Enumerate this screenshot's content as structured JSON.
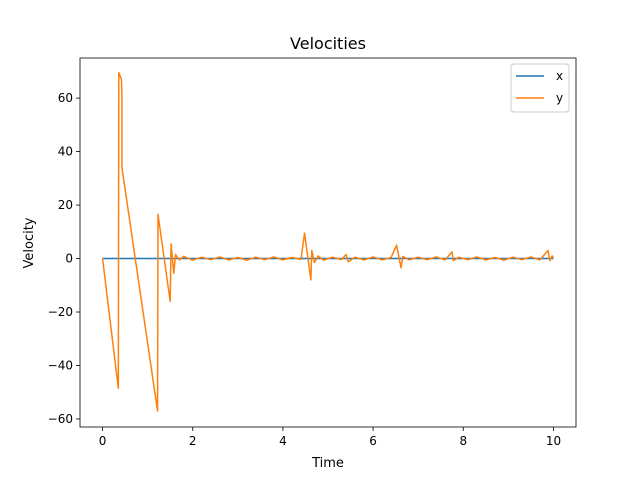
{
  "chart_data": {
    "type": "line",
    "title": "Velocities",
    "xlabel": "Time",
    "ylabel": "Velocity",
    "xlim": [
      -0.5,
      10.5
    ],
    "ylim": [
      -63,
      75
    ],
    "x_ticks": [
      0,
      2,
      4,
      6,
      8,
      10
    ],
    "x_tick_labels": [
      "0",
      "2",
      "4",
      "6",
      "8",
      "10"
    ],
    "y_ticks": [
      -60,
      -40,
      -20,
      0,
      20,
      40,
      60
    ],
    "y_tick_labels": [
      "−60",
      "−40",
      "−20",
      "0",
      "20",
      "40",
      "60"
    ],
    "grid": false,
    "legend_position": "top-right",
    "series": [
      {
        "name": "x",
        "color": "#1f77b4",
        "points": [
          [
            0,
            0
          ],
          [
            10,
            0
          ]
        ]
      },
      {
        "name": "y",
        "color": "#ff7f0e",
        "points": [
          [
            0,
            0
          ],
          [
            0.35,
            -48.5
          ],
          [
            0.36,
            69.5
          ],
          [
            0.42,
            67
          ],
          [
            0.43,
            60
          ],
          [
            0.43,
            34
          ],
          [
            1.22,
            -57
          ],
          [
            1.23,
            16.5
          ],
          [
            1.5,
            -16
          ],
          [
            1.52,
            5.5
          ],
          [
            1.58,
            -5.5
          ],
          [
            1.62,
            1.5
          ],
          [
            1.7,
            -0.5
          ],
          [
            1.8,
            0.8
          ],
          [
            2.0,
            -0.6
          ],
          [
            2.2,
            0.5
          ],
          [
            2.4,
            -0.4
          ],
          [
            2.6,
            0.6
          ],
          [
            2.8,
            -0.5
          ],
          [
            3.0,
            0.4
          ],
          [
            3.2,
            -0.6
          ],
          [
            3.4,
            0.5
          ],
          [
            3.6,
            -0.4
          ],
          [
            3.8,
            0.6
          ],
          [
            4.0,
            -0.5
          ],
          [
            4.2,
            0.4
          ],
          [
            4.4,
            -0.3
          ],
          [
            4.48,
            9.5
          ],
          [
            4.62,
            -8
          ],
          [
            4.64,
            3
          ],
          [
            4.7,
            -1.5
          ],
          [
            4.78,
            1
          ],
          [
            4.9,
            -0.6
          ],
          [
            5.1,
            0.5
          ],
          [
            5.3,
            -0.4
          ],
          [
            5.4,
            1.5
          ],
          [
            5.45,
            -1.2
          ],
          [
            5.6,
            0.5
          ],
          [
            5.8,
            -0.5
          ],
          [
            6.0,
            0.6
          ],
          [
            6.2,
            -0.5
          ],
          [
            6.4,
            0.4
          ],
          [
            6.52,
            5
          ],
          [
            6.58,
            0
          ],
          [
            6.62,
            -3.5
          ],
          [
            6.66,
            0.8
          ],
          [
            6.8,
            -0.5
          ],
          [
            7.0,
            0.5
          ],
          [
            7.2,
            -0.4
          ],
          [
            7.4,
            0.6
          ],
          [
            7.6,
            -0.5
          ],
          [
            7.75,
            2.5
          ],
          [
            7.78,
            -0.8
          ],
          [
            7.9,
            0.5
          ],
          [
            8.1,
            -0.4
          ],
          [
            8.3,
            0.6
          ],
          [
            8.5,
            -0.5
          ],
          [
            8.7,
            0.4
          ],
          [
            8.9,
            -0.6
          ],
          [
            9.1,
            0.5
          ],
          [
            9.3,
            -0.4
          ],
          [
            9.5,
            0.6
          ],
          [
            9.7,
            -0.5
          ],
          [
            9.88,
            3
          ],
          [
            9.92,
            -0.8
          ],
          [
            9.97,
            1
          ],
          [
            10.0,
            0.3
          ]
        ]
      }
    ]
  }
}
